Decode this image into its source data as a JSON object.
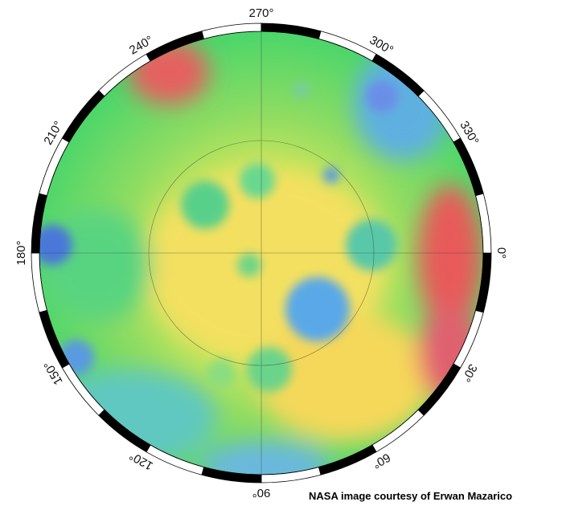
{
  "map": {
    "longitude_labels": [
      "270°",
      "300°",
      "330°",
      "0°",
      "30°",
      "60°",
      "90°",
      "120°",
      "150°",
      "180°",
      "210°",
      "240°"
    ],
    "credit": "NASA image courtesy of Erwan Mazarico"
  }
}
